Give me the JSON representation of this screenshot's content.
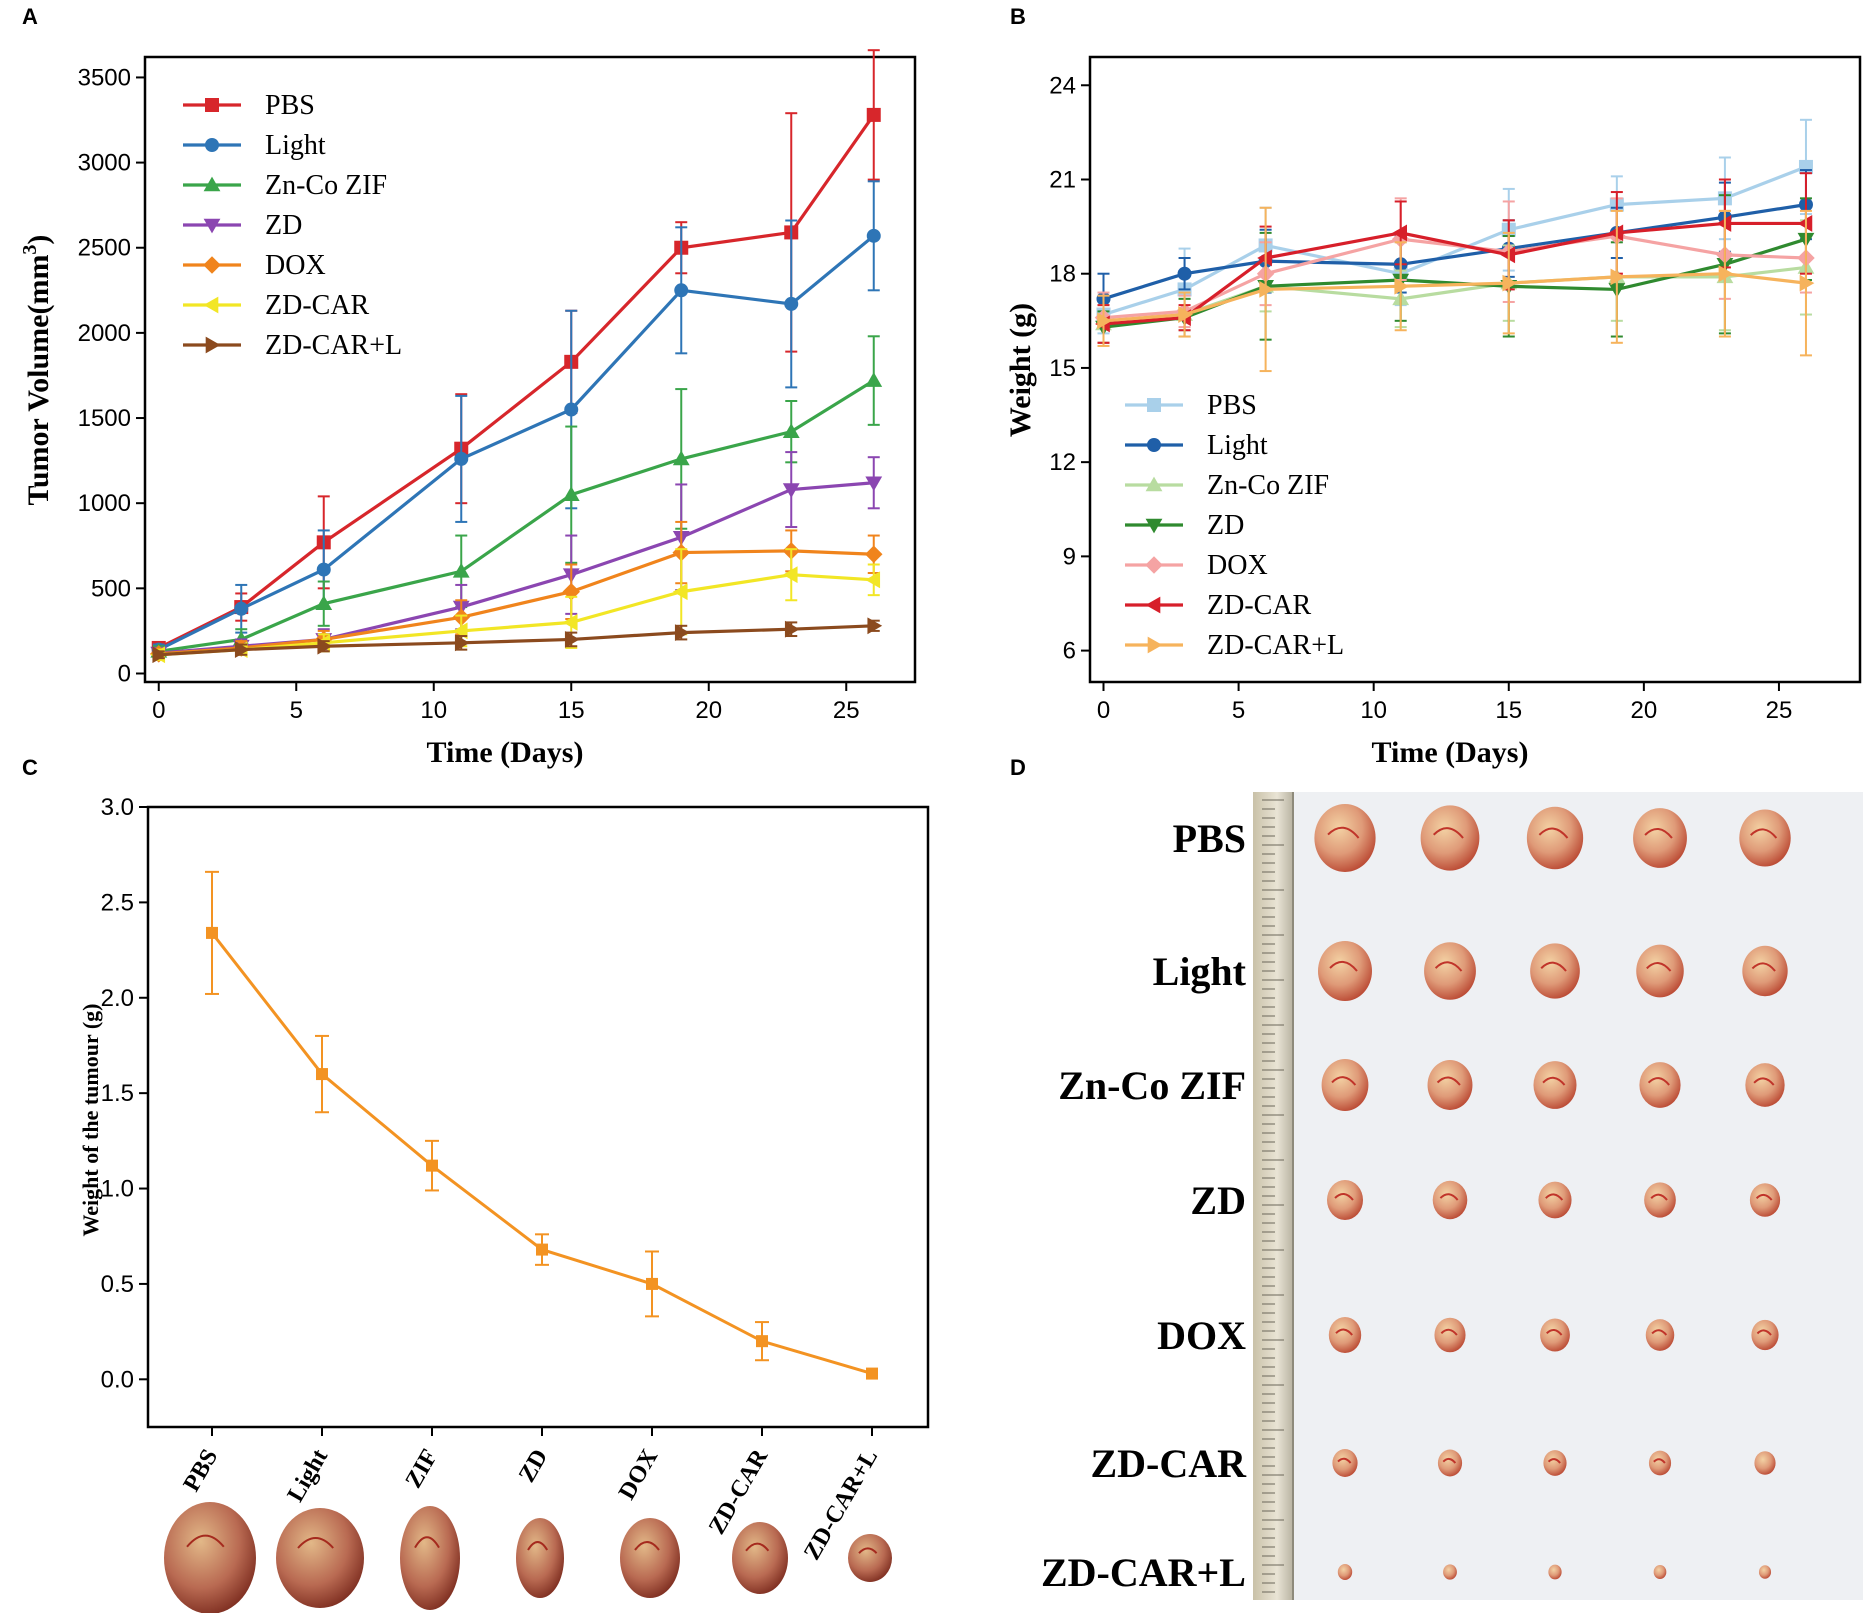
{
  "panels": {
    "a": "A",
    "b": "B",
    "c": "C",
    "d": "D"
  },
  "colors": {
    "a": {
      "PBS": "#d7262b",
      "Light": "#2e75b6",
      "Zn-Co ZIF": "#3aa54a",
      "ZD": "#8b46b1",
      "DOX": "#f0841c",
      "ZD-CAR": "#f2e625",
      "ZD-CAR+L": "#8b4a1e"
    },
    "b": {
      "PBS": "#a9d0ea",
      "Light": "#1f5fa8",
      "Zn-Co ZIF": "#b8dca0",
      "ZD": "#2f8a2f",
      "DOX": "#f5a3a3",
      "ZD-CAR": "#d71f2a",
      "ZD-CAR+L": "#f6b35c"
    },
    "c": "#f39322"
  },
  "chart_data": [
    {
      "id": "A",
      "type": "line",
      "xlabel": "Time (Days)",
      "ylabel": "Tumor Volume(mm³)",
      "ylabel_parts": {
        "main": "Tumor Volume(mm",
        "sup": "3",
        "end": ")"
      },
      "xlim": [
        -0.5,
        27.5
      ],
      "ylim": [
        -50,
        3620
      ],
      "xticks": [
        0,
        5,
        10,
        15,
        20,
        25
      ],
      "yticks": [
        0,
        500,
        1000,
        1500,
        2000,
        2500,
        3000,
        3500
      ],
      "legend_position": "top-left",
      "x": [
        0,
        3,
        6,
        11,
        15,
        19,
        23,
        26
      ],
      "series": [
        {
          "name": "PBS",
          "marker": "square",
          "values": [
            150,
            390,
            770,
            1320,
            1830,
            2500,
            2590,
            3280
          ],
          "errors": [
            30,
            80,
            270,
            320,
            300,
            150,
            700,
            380
          ]
        },
        {
          "name": "Light",
          "marker": "circle",
          "values": [
            140,
            380,
            610,
            1260,
            1550,
            2250,
            2170,
            2570
          ],
          "errors": [
            30,
            140,
            230,
            370,
            580,
            370,
            490,
            320
          ]
        },
        {
          "name": "Zn-Co ZIF",
          "marker": "triangle-up",
          "values": [
            130,
            200,
            410,
            600,
            1050,
            1260,
            1420,
            1720
          ],
          "errors": [
            30,
            60,
            130,
            210,
            400,
            410,
            180,
            260
          ]
        },
        {
          "name": "ZD",
          "marker": "triangle-down",
          "values": [
            120,
            160,
            200,
            390,
            580,
            800,
            1080,
            1120
          ],
          "errors": [
            30,
            40,
            60,
            130,
            230,
            310,
            220,
            150
          ]
        },
        {
          "name": "DOX",
          "marker": "diamond",
          "values": [
            115,
            150,
            200,
            330,
            480,
            710,
            720,
            700
          ],
          "errors": [
            30,
            40,
            50,
            100,
            160,
            180,
            120,
            110
          ]
        },
        {
          "name": "ZD-CAR",
          "marker": "triangle-left",
          "values": [
            110,
            140,
            180,
            250,
            300,
            480,
            580,
            550
          ],
          "errors": [
            30,
            30,
            50,
            90,
            150,
            250,
            150,
            90
          ]
        },
        {
          "name": "ZD-CAR+L",
          "marker": "triangle-right",
          "values": [
            110,
            140,
            160,
            180,
            200,
            240,
            260,
            280
          ],
          "errors": [
            20,
            30,
            30,
            40,
            40,
            40,
            40,
            30
          ]
        }
      ]
    },
    {
      "id": "B",
      "type": "line",
      "xlabel": "Time (Days)",
      "ylabel": "Weight (g)",
      "xlim": [
        -0.5,
        28
      ],
      "ylim": [
        5,
        24.9
      ],
      "xticks": [
        0,
        5,
        10,
        15,
        20,
        25
      ],
      "yticks": [
        6,
        9,
        12,
        15,
        18,
        21,
        24
      ],
      "legend_position": "bottom-left",
      "x": [
        0,
        3,
        6,
        11,
        15,
        19,
        23,
        26
      ],
      "series": [
        {
          "name": "PBS",
          "marker": "square",
          "values": [
            16.7,
            17.5,
            18.9,
            18.0,
            19.4,
            20.2,
            20.4,
            21.4
          ],
          "errors": [
            0.6,
            1.3,
            1.2,
            1.0,
            1.3,
            0.9,
            1.3,
            1.5
          ]
        },
        {
          "name": "Light",
          "marker": "circle",
          "values": [
            17.2,
            18.0,
            18.4,
            18.3,
            18.8,
            19.3,
            19.8,
            20.2
          ],
          "errors": [
            0.8,
            0.5,
            1.0,
            0.9,
            0.9,
            0.8,
            1.1,
            1.1
          ]
        },
        {
          "name": "Zn-Co ZIF",
          "marker": "triangle-up",
          "values": [
            16.4,
            16.7,
            17.6,
            17.2,
            17.7,
            17.9,
            17.9,
            18.2
          ],
          "errors": [
            0.6,
            0.5,
            0.8,
            0.9,
            1.2,
            1.4,
            1.7,
            1.5
          ]
        },
        {
          "name": "ZD",
          "marker": "triangle-down",
          "values": [
            16.3,
            16.6,
            17.6,
            17.8,
            17.6,
            17.5,
            18.3,
            19.1
          ],
          "errors": [
            0.5,
            0.6,
            1.7,
            1.3,
            1.6,
            1.5,
            2.2,
            1.3
          ]
        },
        {
          "name": "DOX",
          "marker": "diamond",
          "values": [
            16.6,
            16.8,
            18.0,
            19.1,
            18.7,
            19.2,
            18.6,
            18.5
          ],
          "errors": [
            0.8,
            0.5,
            1.0,
            1.3,
            1.6,
            1.2,
            1.4,
            1.1
          ]
        },
        {
          "name": "ZD-CAR",
          "marker": "triangle-left",
          "values": [
            16.4,
            16.6,
            18.5,
            19.3,
            18.6,
            19.3,
            19.6,
            19.6
          ],
          "errors": [
            0.6,
            0.4,
            1.0,
            1.0,
            1.1,
            1.3,
            1.4,
            1.6
          ]
        },
        {
          "name": "ZD-CAR+L",
          "marker": "triangle-right",
          "values": [
            16.5,
            16.7,
            17.5,
            17.6,
            17.7,
            17.9,
            18.0,
            17.7
          ],
          "errors": [
            0.8,
            0.7,
            2.6,
            1.4,
            1.6,
            2.1,
            2.0,
            2.3
          ]
        }
      ]
    },
    {
      "id": "C",
      "type": "line",
      "ylabel": "Weight of the tumour (g)",
      "ylim": [
        -0.25,
        3.0
      ],
      "yticks": [
        0.0,
        0.5,
        1.0,
        1.5,
        2.0,
        2.5,
        3.0
      ],
      "ytick_labels": [
        "0.0",
        "0.5",
        "1.0",
        "1.5",
        "2.0",
        "2.5",
        "3.0"
      ],
      "categories": [
        "PBS",
        "Light",
        "ZIF",
        "ZD",
        "DOX",
        "ZD-CAR",
        "ZD-CAR+L"
      ],
      "values": [
        2.34,
        1.6,
        1.12,
        0.68,
        0.5,
        0.2,
        0.03
      ],
      "errors": [
        0.32,
        0.2,
        0.13,
        0.08,
        0.17,
        0.1,
        0.0
      ]
    }
  ],
  "photo_d": {
    "rows": [
      "PBS",
      "Light",
      "Zn-Co ZIF",
      "ZD",
      "DOX",
      "ZD-CAR",
      "ZD-CAR+L"
    ]
  }
}
